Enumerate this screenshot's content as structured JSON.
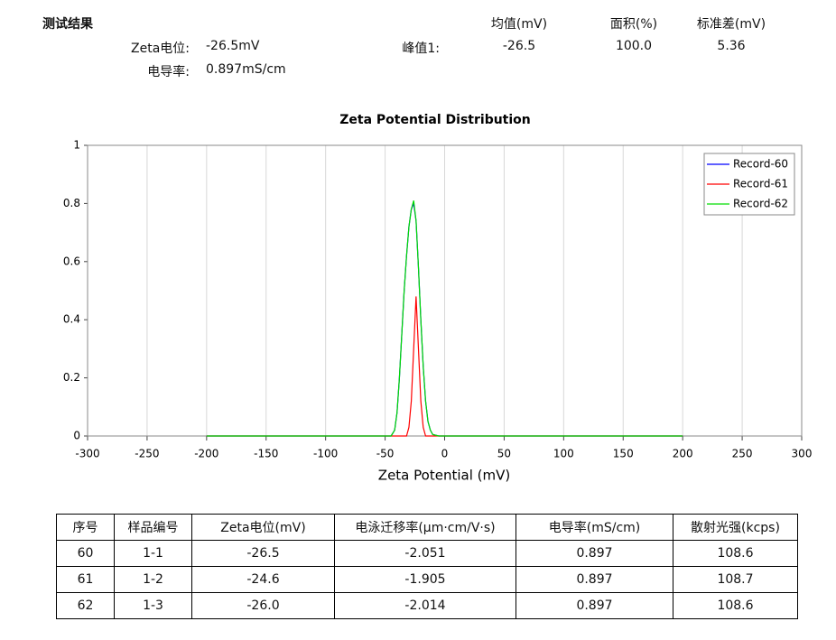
{
  "header": {
    "title": "测试结果",
    "zeta_label": "Zeta电位:",
    "zeta_value": "-26.5mV",
    "conductivity_label": "电导率:",
    "conductivity_value": "0.897mS/cm",
    "peak_columns": [
      "均值(mV)",
      "面积(%)",
      "标准差(mV)"
    ],
    "peak_label": "峰值1:",
    "peak_values": [
      "-26.5",
      "100.0",
      "5.36"
    ]
  },
  "chart_data": {
    "type": "line",
    "title": "Zeta Potential Distribution",
    "x_label": "Zeta Potential (mV)",
    "x": [
      -200,
      -60,
      -50,
      -45,
      -42,
      -40,
      -38,
      -36,
      -34,
      -32,
      -30,
      -28,
      -26,
      -24,
      -22,
      -20,
      -18,
      -16,
      -14,
      -12,
      -10,
      -5,
      0,
      200
    ],
    "series": [
      {
        "name": "Record-60",
        "color": "#0000ff",
        "values": [
          0,
          0,
          0,
          0,
          0.02,
          0.08,
          0.2,
          0.35,
          0.5,
          0.62,
          0.72,
          0.78,
          0.8,
          0.74,
          0.58,
          0.4,
          0.24,
          0.12,
          0.05,
          0.02,
          0.005,
          0,
          0,
          0
        ]
      },
      {
        "name": "Record-61",
        "color": "#ff0000",
        "values": [
          0,
          0,
          0,
          0,
          0,
          0,
          0,
          0,
          0,
          0,
          0.03,
          0.12,
          0.3,
          0.48,
          0.3,
          0.12,
          0.03,
          0,
          0,
          0,
          0,
          0,
          0,
          0
        ]
      },
      {
        "name": "Record-62",
        "color": "#00dd00",
        "values": [
          0,
          0,
          0,
          0,
          0.02,
          0.08,
          0.2,
          0.35,
          0.5,
          0.62,
          0.72,
          0.78,
          0.81,
          0.74,
          0.58,
          0.4,
          0.24,
          0.12,
          0.05,
          0.02,
          0.005,
          0,
          0,
          0
        ]
      }
    ],
    "xlim": [
      -300,
      300
    ],
    "xticks": [
      -300,
      -250,
      -200,
      -150,
      -100,
      -50,
      0,
      50,
      100,
      150,
      200,
      250,
      300
    ],
    "ylim": [
      0,
      1
    ],
    "yticks": [
      0,
      0.2,
      0.4,
      0.6,
      0.8,
      1
    ],
    "grid": "vertical",
    "legend": "upper right"
  },
  "table": {
    "columns": [
      "序号",
      "样品编号",
      "Zeta电位(mV)",
      "电泳迁移率(μm·cm/V·s)",
      "电导率(mS/cm)",
      "散射光强(kcps)"
    ],
    "rows": [
      [
        "60",
        "1-1",
        "-26.5",
        "-2.051",
        "0.897",
        "108.6"
      ],
      [
        "61",
        "1-2",
        "-24.6",
        "-1.905",
        "0.897",
        "108.7"
      ],
      [
        "62",
        "1-3",
        "-26.0",
        "-2.014",
        "0.897",
        "108.6"
      ]
    ]
  }
}
